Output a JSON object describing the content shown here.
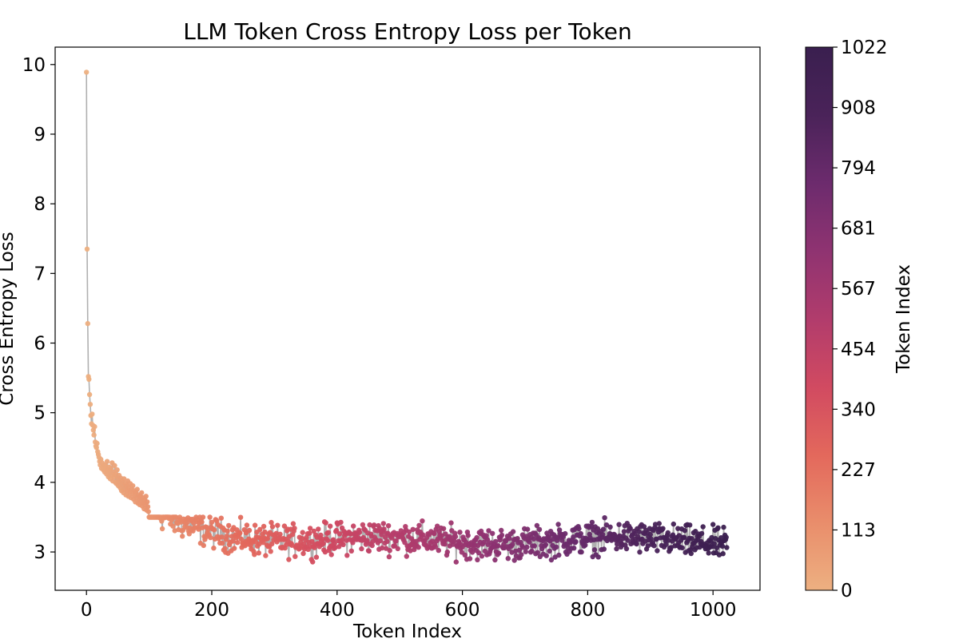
{
  "chart_data": {
    "type": "scatter",
    "title": "LLM Token Cross Entropy Loss per Token",
    "xlabel": "Token Index",
    "ylabel": "Cross Entropy Loss",
    "xlim": [
      -50,
      1075
    ],
    "ylim": [
      2.45,
      10.25
    ],
    "xticks": [
      0,
      200,
      400,
      600,
      800,
      1000
    ],
    "yticks": [
      3,
      4,
      5,
      6,
      7,
      8,
      9,
      10
    ],
    "grid": false,
    "line_color": "#b0b0b0",
    "colormap": "flare",
    "colormap_stops": [
      "#edb081",
      "#e98d6b",
      "#e3685c",
      "#d14a61",
      "#b13c6c",
      "#8f3371",
      "#6c2b6d",
      "#4a2359",
      "#3a1f4f"
    ],
    "colorbar": {
      "label": "Token Index",
      "range": [
        0,
        1022
      ],
      "ticks": [
        "0",
        "113",
        "227",
        "340",
        "454",
        "567",
        "681",
        "794",
        "908",
        "1022"
      ]
    },
    "series": [
      {
        "x_start": 0,
        "x_end": 1022,
        "values": [
          9.89,
          7.35,
          6.28,
          5.52,
          5.48,
          5.26,
          5.12,
          4.96,
          4.84,
          4.98,
          4.82,
          4.75,
          4.68,
          4.8,
          4.58,
          4.52,
          4.5,
          4.56,
          4.44,
          4.4,
          4.36,
          4.3,
          4.25,
          4.33,
          4.2,
          4.28,
          4.22,
          4.18,
          4.25,
          4.15,
          4.24,
          4.2,
          4.12,
          4.3,
          4.18,
          4.08,
          4.22,
          4.15,
          4.05,
          4.2,
          4.1,
          4.28,
          4.02,
          4.15,
          4.08,
          4.24,
          4.0,
          4.12,
          3.98,
          4.18,
          4.05,
          3.95,
          4.1,
          4.0,
          3.92,
          4.06,
          3.88,
          4.02,
          3.96,
          3.85,
          4.05,
          3.9,
          3.98,
          3.82,
          3.95,
          3.88,
          4.02,
          3.8,
          3.92,
          3.86,
          3.98,
          3.78,
          3.9,
          3.84,
          3.95,
          3.76,
          3.88,
          3.82,
          3.72,
          3.86,
          3.78,
          3.9,
          3.7,
          3.82,
          3.75,
          3.68,
          3.8,
          3.72,
          3.85,
          3.66,
          3.78,
          3.7,
          3.62,
          3.75,
          3.68,
          3.8,
          3.6,
          3.72,
          3.65,
          3.58
        ]
      }
    ],
    "points_note_tail": "remaining points continue with loss fluctuating between about 2.8 and 3.5 up to token index 1022"
  }
}
